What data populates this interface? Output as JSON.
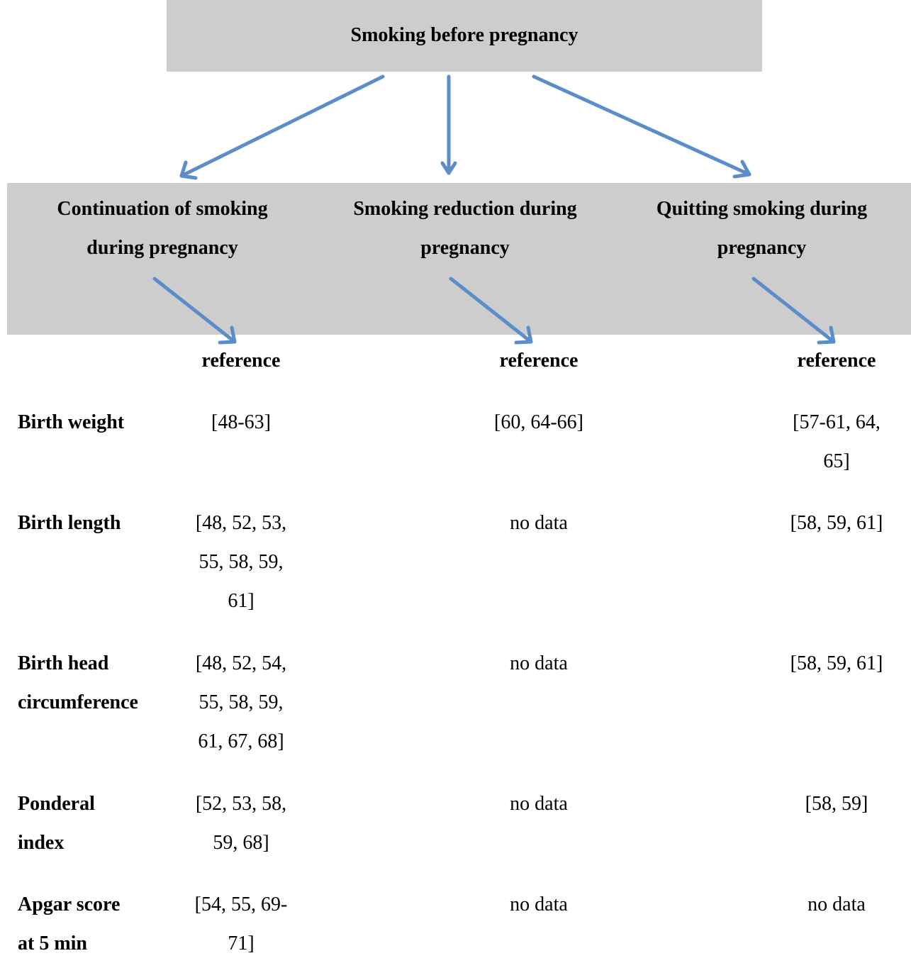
{
  "top_box": {
    "label": "Smoking before pregnancy"
  },
  "categories": [
    {
      "label": "Continuation of smoking during pregnancy",
      "line1": "Continuation of smoking",
      "line2": "during pregnancy"
    },
    {
      "label": "Smoking reduction during pregnancy",
      "line1": "Smoking reduction during",
      "line2": "pregnancy"
    },
    {
      "label": "Quitting smoking during pregnancy",
      "line1": "Quitting smoking during",
      "line2": "pregnancy"
    }
  ],
  "reference_header": "reference",
  "rows": [
    {
      "label_line1": "Birth weight",
      "label_line2": "",
      "cells": [
        [
          "[48-63]"
        ],
        [
          "[60, 64-66]"
        ],
        [
          "[57-61, 64,",
          "65]"
        ]
      ]
    },
    {
      "label_line1": "Birth length",
      "label_line2": "",
      "cells": [
        [
          "[48, 52, 53,",
          "55, 58, 59,",
          "61]"
        ],
        [
          "no data"
        ],
        [
          "[58, 59, 61]"
        ]
      ]
    },
    {
      "label_line1": "Birth head",
      "label_line2": "circumference",
      "cells": [
        [
          "[48, 52, 54,",
          "55, 58, 59,",
          "61, 67, 68]"
        ],
        [
          "no data"
        ],
        [
          "[58, 59, 61]"
        ]
      ]
    },
    {
      "label_line1": "Ponderal",
      "label_line2": "index",
      "cells": [
        [
          "[52, 53, 58,",
          "59, 68]"
        ],
        [
          "no data"
        ],
        [
          "[58, 59]"
        ]
      ]
    },
    {
      "label_line1": "Apgar score",
      "label_line2": "at 5 min",
      "cells": [
        [
          "[54, 55, 69-",
          "71]"
        ],
        [
          "no data"
        ],
        [
          "no data"
        ]
      ]
    }
  ],
  "colors": {
    "box_fill": "#cdcdcd",
    "arrow": "#5b8ec9"
  }
}
